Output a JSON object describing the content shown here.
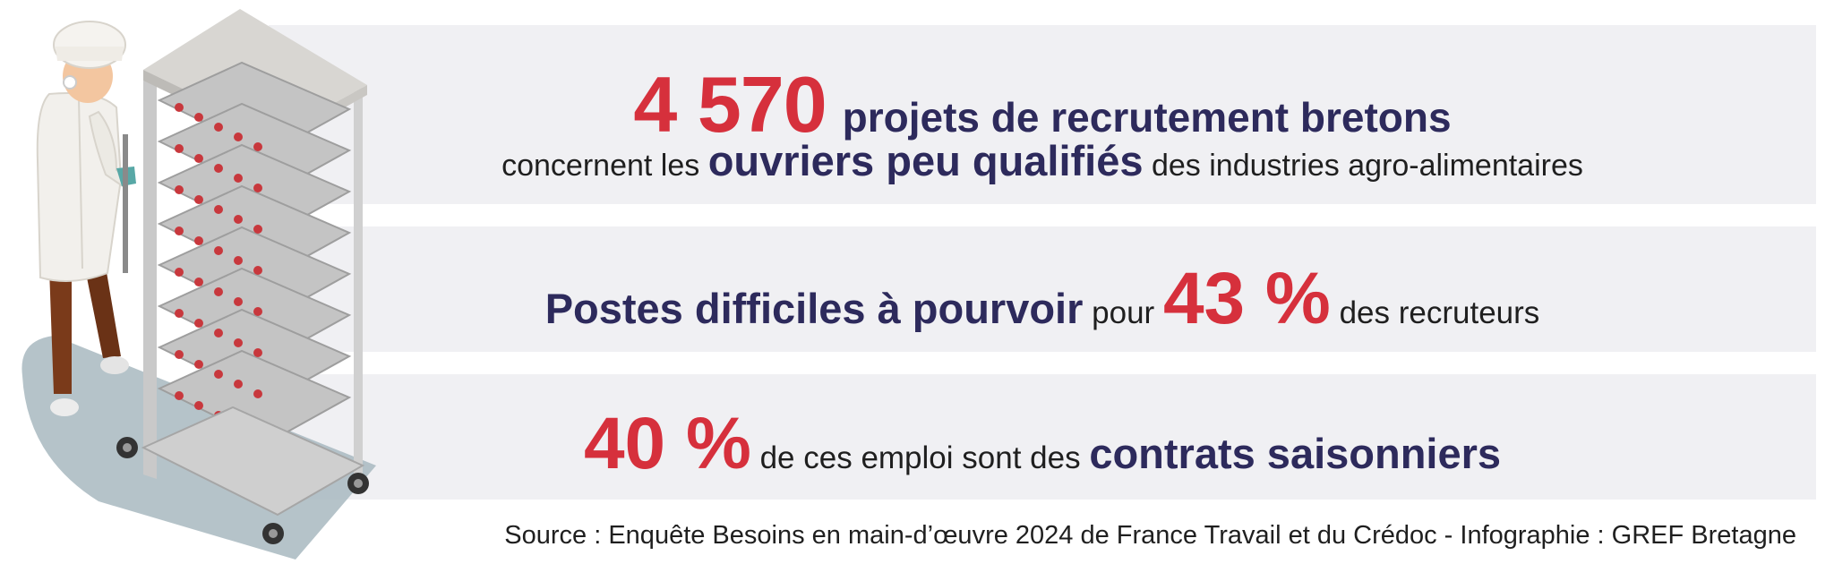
{
  "stat1": {
    "number": "4 570",
    "headline": "projets de recrutement bretons",
    "sub_pre": "concernent les",
    "sub_bold": "ouvriers peu qualifiés",
    "sub_post": "des industries agro-alimentaires"
  },
  "stat2": {
    "bold": "Postes difficiles à pourvoir",
    "mid": "pour",
    "number": "43 %",
    "post": "des recruteurs"
  },
  "stat3": {
    "number": "40 %",
    "mid": "de ces emploi sont des",
    "bold": "contrats saisonniers"
  },
  "source": "Source : Enquête Besoins en main-d’œuvre 2024 de France Travail et du Crédoc - Infographie : GREF Bretagne",
  "colors": {
    "accent_red": "#d6303c",
    "navy": "#2d2a5c",
    "band": "#f0f0f3"
  },
  "illustration": "worker-with-bakery-rack-illustration"
}
